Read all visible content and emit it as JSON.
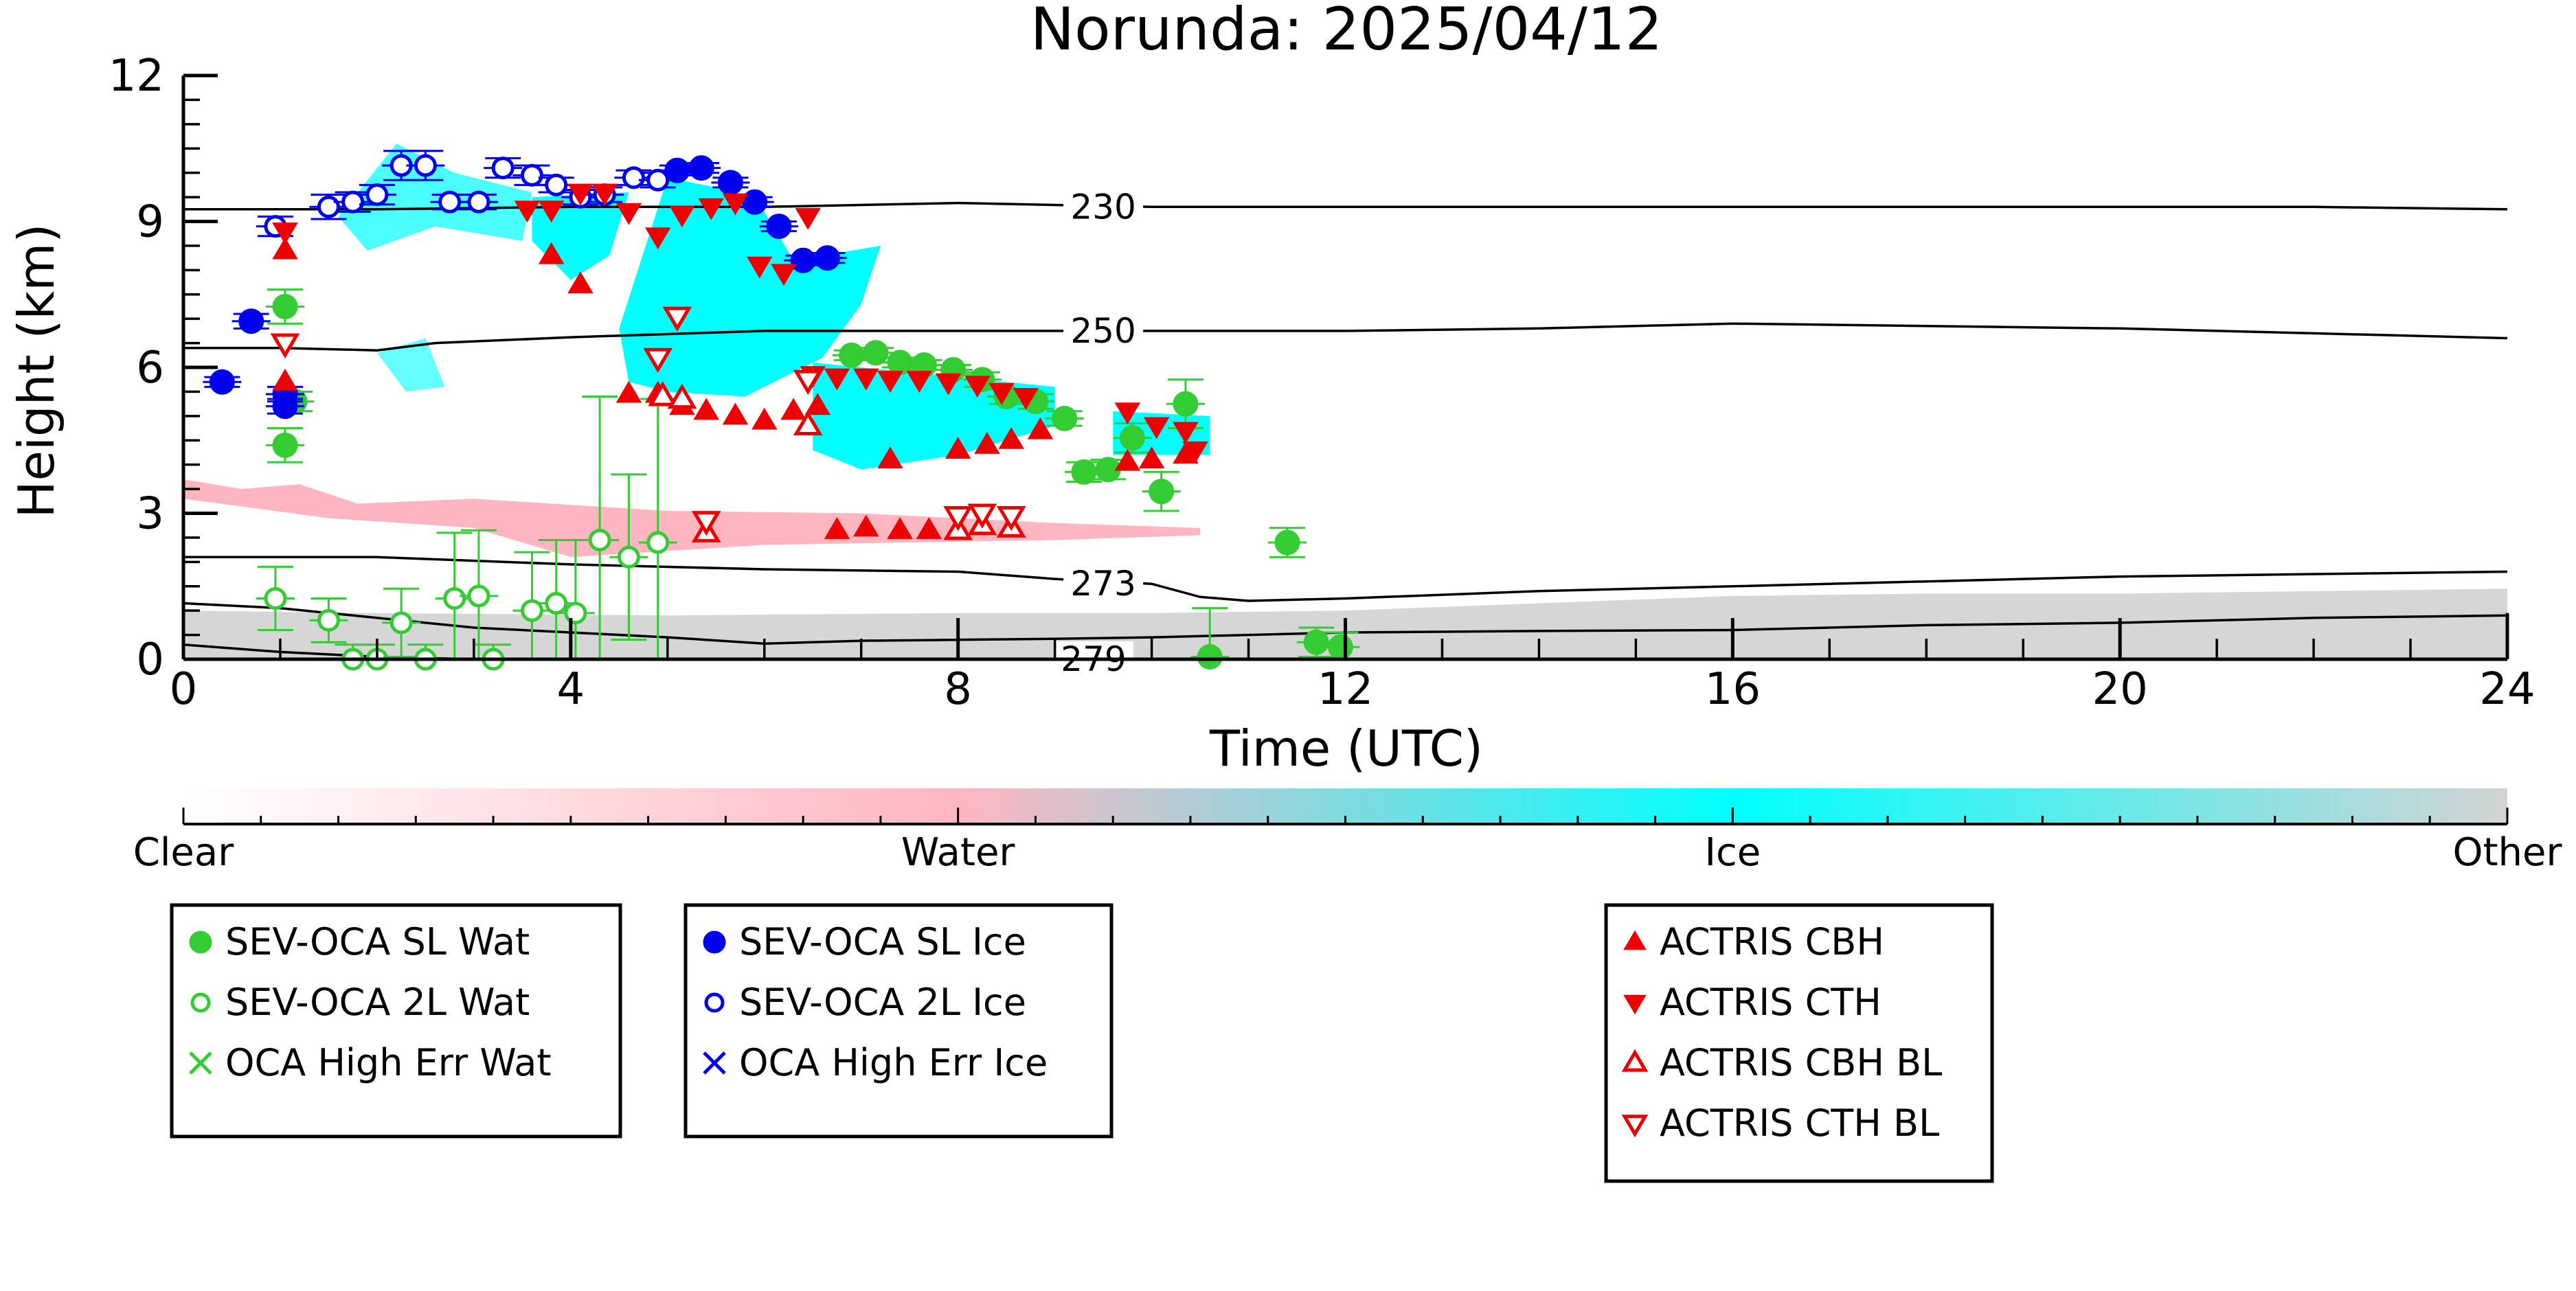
{
  "chart_data": {
    "type": "scatter",
    "title": "Norunda: 2025/04/12",
    "xlabel": "Time (UTC)",
    "ylabel": "Height (km)",
    "xlim": [
      0,
      24
    ],
    "ylim": [
      0,
      12
    ],
    "x_ticks": [
      "0",
      "4",
      "8",
      "12",
      "16",
      "20",
      "24"
    ],
    "y_ticks": [
      "0",
      "3",
      "6",
      "9",
      "12"
    ],
    "colorbar": {
      "labels": [
        "Clear",
        "Water",
        "Ice",
        "Other"
      ],
      "colors": [
        "#ffffff",
        "#ffb6c1",
        "#00ffff",
        "#d3d3d3"
      ]
    },
    "isotherms": [
      {
        "label": "230",
        "x": [
          0,
          2,
          4,
          6,
          8,
          10,
          12,
          14,
          16,
          18,
          20,
          22,
          24
        ],
        "y": [
          9.25,
          9.25,
          9.3,
          9.3,
          9.38,
          9.3,
          9.3,
          9.3,
          9.3,
          9.3,
          9.3,
          9.3,
          9.25
        ]
      },
      {
        "label": "250",
        "x": [
          0,
          1,
          2,
          2.6,
          4,
          6,
          8,
          10,
          12,
          14,
          16,
          18,
          20,
          22,
          24
        ],
        "y": [
          6.4,
          6.4,
          6.35,
          6.5,
          6.62,
          6.75,
          6.75,
          6.75,
          6.75,
          6.8,
          6.9,
          6.85,
          6.8,
          6.7,
          6.6
        ]
      },
      {
        "label": "273",
        "x": [
          0,
          2,
          4,
          6,
          8,
          9,
          10,
          10.5,
          11,
          12,
          14,
          16,
          18,
          20,
          22,
          24
        ],
        "y": [
          2.1,
          2.1,
          1.95,
          1.85,
          1.8,
          1.65,
          1.55,
          1.28,
          1.2,
          1.25,
          1.4,
          1.5,
          1.6,
          1.7,
          1.75,
          1.8
        ]
      },
      {
        "label": "279",
        "x": [
          0,
          1,
          2,
          3,
          4,
          5,
          6,
          8,
          10,
          12,
          14,
          16,
          18,
          20,
          22,
          24
        ],
        "y": [
          0.3,
          0.15,
          0.05,
          0.0,
          0.0,
          0.0,
          0.0,
          0.0,
          0.0,
          0.0,
          0.0,
          0.0,
          0.0,
          0.0,
          0.0,
          0.0
        ]
      },
      {
        "label": "",
        "x": [
          0,
          1,
          2,
          3,
          4,
          5,
          6,
          7,
          8,
          9,
          10,
          11,
          12,
          14,
          16,
          18,
          20,
          22,
          24
        ],
        "y": [
          1.15,
          1.05,
          0.85,
          0.65,
          0.55,
          0.45,
          0.32,
          0.38,
          0.4,
          0.42,
          0.45,
          0.5,
          0.55,
          0.58,
          0.6,
          0.7,
          0.75,
          0.85,
          0.9
        ]
      }
    ],
    "series": [
      {
        "name": "SEV-OCA SL Wat",
        "marker": "filled-circle",
        "color": "#33cc33",
        "points": [
          [
            1.05,
            7.25,
            0.35
          ],
          [
            1.05,
            4.4,
            0.35
          ],
          [
            1.15,
            5.3,
            0.2
          ],
          [
            6.9,
            6.25,
            0.1
          ],
          [
            7.15,
            6.3,
            0.1
          ],
          [
            7.4,
            6.1,
            0.1
          ],
          [
            7.65,
            6.05,
            0.1
          ],
          [
            7.95,
            5.95,
            0.1
          ],
          [
            8.25,
            5.75,
            0.15
          ],
          [
            8.5,
            5.4,
            0.15
          ],
          [
            8.8,
            5.3,
            0.15
          ],
          [
            9.1,
            4.95,
            0.15
          ],
          [
            9.3,
            3.85,
            0.2
          ],
          [
            9.55,
            3.9,
            0.2
          ],
          [
            9.8,
            4.55,
            0.3
          ],
          [
            10.1,
            3.45,
            0.4
          ],
          [
            10.35,
            5.25,
            0.5
          ],
          [
            10.6,
            0.05,
            1.0
          ],
          [
            11.4,
            2.4,
            0.3
          ],
          [
            11.7,
            0.35,
            0.3
          ],
          [
            11.95,
            0.25,
            0.3
          ]
        ]
      },
      {
        "name": "SEV-OCA 2L Wat",
        "marker": "open-circle",
        "color": "#33cc33",
        "points": [
          [
            0.95,
            1.25,
            0.65
          ],
          [
            1.5,
            0.8,
            0.45
          ],
          [
            1.75,
            0.0,
            0.3
          ],
          [
            2.0,
            0.0,
            0.3
          ],
          [
            2.25,
            0.75,
            0.7
          ],
          [
            2.5,
            0.0,
            0.3
          ],
          [
            2.8,
            1.25,
            1.35
          ],
          [
            3.05,
            1.3,
            1.35
          ],
          [
            3.2,
            0.0,
            0.3
          ],
          [
            3.6,
            1.0,
            1.2
          ],
          [
            3.85,
            1.15,
            1.3
          ],
          [
            4.05,
            0.95,
            1.5
          ],
          [
            4.3,
            2.45,
            2.95
          ],
          [
            4.6,
            2.1,
            1.7
          ],
          [
            4.9,
            2.4,
            2.95
          ]
        ]
      },
      {
        "name": "OCA High Err Wat",
        "marker": "x",
        "color": "#33cc33",
        "points": []
      },
      {
        "name": "SEV-OCA SL Ice",
        "marker": "filled-circle",
        "color": "#0000ee",
        "points": [
          [
            0.4,
            5.7,
            0.1
          ],
          [
            0.7,
            6.95,
            0.15
          ],
          [
            1.05,
            5.45,
            0.15
          ],
          [
            1.05,
            5.2,
            0.15
          ],
          [
            5.1,
            10.05,
            0.1
          ],
          [
            5.35,
            10.1,
            0.1
          ],
          [
            5.65,
            9.8,
            0.1
          ],
          [
            5.9,
            9.4,
            0.1
          ],
          [
            6.15,
            8.9,
            0.1
          ],
          [
            6.4,
            8.2,
            0.1
          ],
          [
            6.65,
            8.25,
            0.1
          ]
        ]
      },
      {
        "name": "SEV-OCA 2L Ice",
        "marker": "open-circle",
        "color": "#0000ee",
        "points": [
          [
            0.95,
            8.9,
            0.2
          ],
          [
            1.5,
            9.3,
            0.25
          ],
          [
            1.75,
            9.4,
            0.2
          ],
          [
            2.0,
            9.55,
            0.2
          ],
          [
            2.25,
            10.15,
            0.3
          ],
          [
            2.5,
            10.15,
            0.3
          ],
          [
            2.75,
            9.4,
            0.15
          ],
          [
            3.05,
            9.4,
            0.15
          ],
          [
            3.3,
            10.1,
            0.2
          ],
          [
            3.6,
            9.95,
            0.2
          ],
          [
            3.85,
            9.75,
            0.15
          ],
          [
            4.1,
            9.5,
            0.15
          ],
          [
            4.35,
            9.55,
            0.15
          ],
          [
            4.65,
            9.9,
            0.15
          ],
          [
            4.9,
            9.85,
            0.15
          ]
        ]
      },
      {
        "name": "OCA High Err Ice",
        "marker": "x",
        "color": "#0000ee",
        "points": []
      },
      {
        "name": "ACTRIS CBH",
        "marker": "triangle-up",
        "color": "#ee0000",
        "points": [
          [
            1.05,
            8.4
          ],
          [
            1.05,
            5.7
          ],
          [
            3.8,
            8.3
          ],
          [
            4.1,
            7.7
          ],
          [
            4.6,
            5.45
          ],
          [
            4.9,
            5.45
          ],
          [
            5.15,
            5.2
          ],
          [
            5.4,
            5.1
          ],
          [
            5.7,
            5.0
          ],
          [
            6.0,
            4.9
          ],
          [
            6.3,
            5.1
          ],
          [
            6.55,
            5.2
          ],
          [
            6.75,
            2.65
          ],
          [
            7.05,
            2.7
          ],
          [
            7.3,
            4.1
          ],
          [
            7.4,
            2.65
          ],
          [
            7.7,
            2.65
          ],
          [
            8.0,
            4.3
          ],
          [
            8.3,
            4.4
          ],
          [
            8.55,
            4.5
          ],
          [
            8.85,
            4.7
          ],
          [
            9.75,
            4.05
          ],
          [
            10.0,
            4.1
          ],
          [
            10.35,
            4.2
          ]
        ]
      },
      {
        "name": "ACTRIS CTH",
        "marker": "triangle-down",
        "color": "#ee0000",
        "points": [
          [
            1.05,
            8.8
          ],
          [
            3.55,
            9.25
          ],
          [
            3.8,
            9.25
          ],
          [
            4.1,
            9.6
          ],
          [
            4.35,
            9.6
          ],
          [
            4.6,
            9.2
          ],
          [
            4.9,
            8.7
          ],
          [
            5.15,
            9.15
          ],
          [
            5.45,
            9.3
          ],
          [
            5.7,
            9.4
          ],
          [
            5.95,
            8.1
          ],
          [
            6.2,
            7.95
          ],
          [
            6.45,
            9.1
          ],
          [
            6.5,
            5.85
          ],
          [
            6.75,
            5.8
          ],
          [
            7.05,
            5.8
          ],
          [
            7.3,
            5.75
          ],
          [
            7.6,
            5.75
          ],
          [
            7.9,
            5.7
          ],
          [
            8.2,
            5.65
          ],
          [
            8.45,
            5.5
          ],
          [
            8.7,
            5.4
          ],
          [
            9.75,
            5.1
          ],
          [
            10.05,
            4.8
          ],
          [
            10.35,
            4.7
          ],
          [
            10.45,
            4.3
          ]
        ]
      },
      {
        "name": "ACTRIS CBH BL",
        "marker": "open-triangle-up",
        "color": "#ee0000",
        "points": [
          [
            4.95,
            5.4
          ],
          [
            5.15,
            5.35
          ],
          [
            6.45,
            4.8
          ],
          [
            5.4,
            2.6
          ],
          [
            8.0,
            2.65
          ],
          [
            8.25,
            2.75
          ],
          [
            8.55,
            2.7
          ]
        ]
      },
      {
        "name": "ACTRIS CTH BL",
        "marker": "open-triangle-down",
        "color": "#ee0000",
        "points": [
          [
            1.05,
            6.5
          ],
          [
            4.9,
            6.2
          ],
          [
            5.1,
            7.05
          ],
          [
            6.45,
            5.75
          ],
          [
            5.4,
            2.85
          ],
          [
            8.0,
            2.95
          ],
          [
            8.25,
            3.0
          ],
          [
            8.55,
            2.95
          ]
        ]
      }
    ]
  },
  "legends": [
    {
      "items": [
        {
          "label": "SEV-OCA SL Wat",
          "marker": "filled-circle",
          "color": "#33cc33"
        },
        {
          "label": "SEV-OCA 2L Wat",
          "marker": "open-circle",
          "color": "#33cc33"
        },
        {
          "label": "OCA High Err Wat",
          "marker": "x",
          "color": "#33cc33"
        }
      ]
    },
    {
      "items": [
        {
          "label": "SEV-OCA SL Ice",
          "marker": "filled-circle",
          "color": "#0000ee"
        },
        {
          "label": "SEV-OCA 2L Ice",
          "marker": "open-circle",
          "color": "#0000ee"
        },
        {
          "label": "OCA High Err Ice",
          "marker": "x",
          "color": "#0000ee"
        }
      ]
    },
    {
      "items": [
        {
          "label": "ACTRIS CBH",
          "marker": "triangle-up",
          "color": "#ee0000"
        },
        {
          "label": "ACTRIS CTH",
          "marker": "triangle-down",
          "color": "#ee0000"
        },
        {
          "label": "ACTRIS CBH BL",
          "marker": "open-triangle-up",
          "color": "#ee0000"
        },
        {
          "label": "ACTRIS CTH BL",
          "marker": "open-triangle-down",
          "color": "#ee0000"
        }
      ]
    }
  ]
}
